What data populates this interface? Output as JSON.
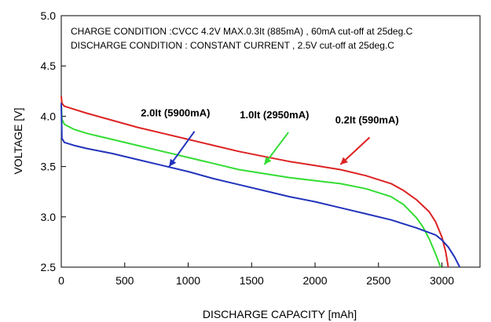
{
  "chart_data": {
    "type": "line",
    "annotation_lines": [
      "CHARGE CONDITION :CVCC 4.2V MAX.0.3It (885mA) , 60mA cut-off at  25deg.C",
      "DISCHARGE CONDITION : CONSTANT CURRENT , 2.5V cut-off at  25deg.C"
    ],
    "xlabel": "DISCHARGE CAPACITY  [mAh]",
    "ylabel": "VOLTAGE [V]",
    "xlim": [
      0,
      3300
    ],
    "ylim": [
      2.5,
      5.0
    ],
    "x_ticks": [
      "0",
      "500",
      "1000",
      "1500",
      "2000",
      "2500",
      "3000"
    ],
    "y_ticks": [
      "2.5",
      "3.0",
      "3.5",
      "4.0",
      "4.5",
      "5.0"
    ],
    "grid": false,
    "series": [
      {
        "name": "0.2It (590mA)",
        "color": "#dd2222",
        "x": [
          0,
          5,
          25,
          100,
          200,
          400,
          600,
          800,
          1000,
          1200,
          1400,
          1600,
          1800,
          2000,
          2200,
          2400,
          2600,
          2700,
          2800,
          2900,
          2950,
          3000,
          3030,
          3050
        ],
        "y": [
          4.2,
          4.13,
          4.1,
          4.07,
          4.03,
          3.96,
          3.89,
          3.83,
          3.77,
          3.71,
          3.65,
          3.6,
          3.55,
          3.51,
          3.47,
          3.41,
          3.33,
          3.26,
          3.17,
          3.05,
          2.95,
          2.8,
          2.65,
          2.5
        ]
      },
      {
        "name": "1.0It (2950mA)",
        "color": "#33dd33",
        "x": [
          0,
          5,
          25,
          100,
          200,
          400,
          600,
          800,
          1000,
          1200,
          1400,
          1600,
          1800,
          2000,
          2200,
          2400,
          2600,
          2700,
          2800,
          2850,
          2900,
          2950,
          2990
        ],
        "y": [
          4.12,
          3.97,
          3.92,
          3.87,
          3.83,
          3.77,
          3.71,
          3.65,
          3.59,
          3.53,
          3.47,
          3.43,
          3.39,
          3.36,
          3.33,
          3.28,
          3.2,
          3.12,
          2.99,
          2.9,
          2.78,
          2.63,
          2.5
        ]
      },
      {
        "name": "2.0It (5900mA)",
        "color": "#2233bb",
        "x": [
          0,
          5,
          25,
          100,
          200,
          400,
          600,
          800,
          1000,
          1200,
          1400,
          1600,
          1800,
          2000,
          2200,
          2400,
          2600,
          2800,
          2950,
          3000,
          3050,
          3100,
          3140
        ],
        "y": [
          4.13,
          3.78,
          3.74,
          3.71,
          3.68,
          3.63,
          3.57,
          3.51,
          3.45,
          3.38,
          3.32,
          3.26,
          3.2,
          3.15,
          3.09,
          3.03,
          2.97,
          2.89,
          2.82,
          2.77,
          2.7,
          2.6,
          2.5
        ]
      }
    ],
    "label_arrows": [
      {
        "series": 2,
        "text": "2.0It (5900mA)",
        "text_x": 900,
        "text_y": 4.0,
        "arrow_from": [
          1050,
          3.85
        ],
        "arrow_to": [
          850,
          3.5
        ]
      },
      {
        "series": 1,
        "text": "1.0It (2950mA)",
        "text_x": 1680,
        "text_y": 3.98,
        "arrow_from": [
          1790,
          3.84
        ],
        "arrow_to": [
          1600,
          3.52
        ]
      },
      {
        "series": 0,
        "text": "0.2It (590mA)",
        "text_x": 2410,
        "text_y": 3.93,
        "arrow_from": [
          2430,
          3.79
        ],
        "arrow_to": [
          2200,
          3.52
        ]
      }
    ]
  }
}
